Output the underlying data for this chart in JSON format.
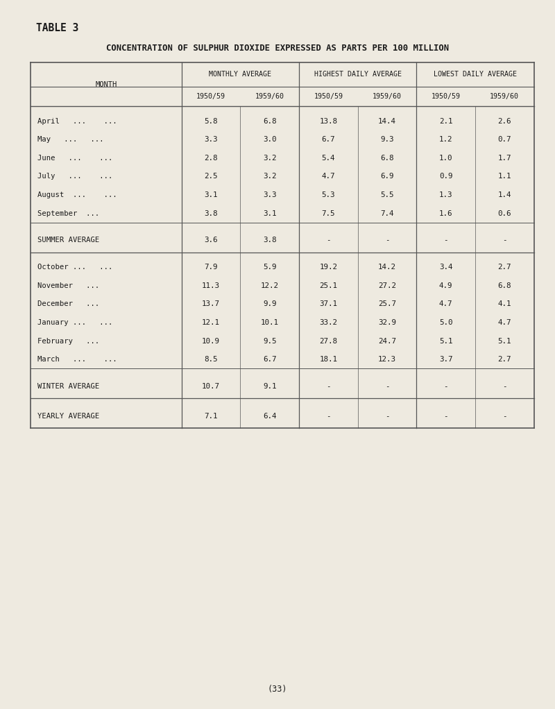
{
  "table_title": "TABLE 3",
  "main_title": "CONCENTRATION OF SULPHUR DIOXIDE EXPRESSED AS PARTS PER 100 MILLION",
  "col_headers": [
    "MONTHLY AVERAGE",
    "HIGHEST DAILY AVERAGE",
    "LOWEST DAILY AVERAGE"
  ],
  "sub_headers": [
    "1950/59",
    "1959/60",
    "1950/59",
    "1959/60",
    "1950/59",
    "1959/60"
  ],
  "summer_months_display": [
    "April   ...    ...",
    "May   ...   ...",
    "June   ...    ...",
    "July   ...    ...",
    "August  ...    ...",
    "September  ..."
  ],
  "summer_label": "SUMMER AVERAGE",
  "winter_months_display": [
    "October ...   ...",
    "November   ...",
    "December   ...",
    "January ...   ...",
    "February   ...",
    "March   ...    ..."
  ],
  "winter_label": "WINTER AVERAGE",
  "yearly_label": "YEARLY AVERAGE",
  "summer_data": [
    [
      "5.8",
      "6.8",
      "13.8",
      "14.4",
      "2.1",
      "2.6"
    ],
    [
      "3.3",
      "3.0",
      "6.7",
      "9.3",
      "1.2",
      "0.7"
    ],
    [
      "2.8",
      "3.2",
      "5.4",
      "6.8",
      "1.0",
      "1.7"
    ],
    [
      "2.5",
      "3.2",
      "4.7",
      "6.9",
      "0.9",
      "1.1"
    ],
    [
      "3.1",
      "3.3",
      "5.3",
      "5.5",
      "1.3",
      "1.4"
    ],
    [
      "3.8",
      "3.1",
      "7.5",
      "7.4",
      "1.6",
      "0.6"
    ]
  ],
  "summer_avg": [
    "3.6",
    "3.8",
    "-",
    "-",
    "-",
    "-"
  ],
  "winter_data": [
    [
      "7.9",
      "5.9",
      "19.2",
      "14.2",
      "3.4",
      "2.7"
    ],
    [
      "11.3",
      "12.2",
      "25.1",
      "27.2",
      "4.9",
      "6.8"
    ],
    [
      "13.7",
      "9.9",
      "37.1",
      "25.7",
      "4.7",
      "4.1"
    ],
    [
      "12.1",
      "10.1",
      "33.2",
      "32.9",
      "5.0",
      "4.7"
    ],
    [
      "10.9",
      "9.5",
      "27.8",
      "24.7",
      "5.1",
      "5.1"
    ],
    [
      "8.5",
      "6.7",
      "18.1",
      "12.3",
      "3.7",
      "2.7"
    ]
  ],
  "winter_avg": [
    "10.7",
    "9.1",
    "-",
    "-",
    "-",
    "-"
  ],
  "yearly_avg": [
    "7.1",
    "6.4",
    "-",
    "-",
    "-",
    "-"
  ],
  "bg_color": "#eeeae0",
  "text_color": "#1a1a1a",
  "page_num": "(33)"
}
